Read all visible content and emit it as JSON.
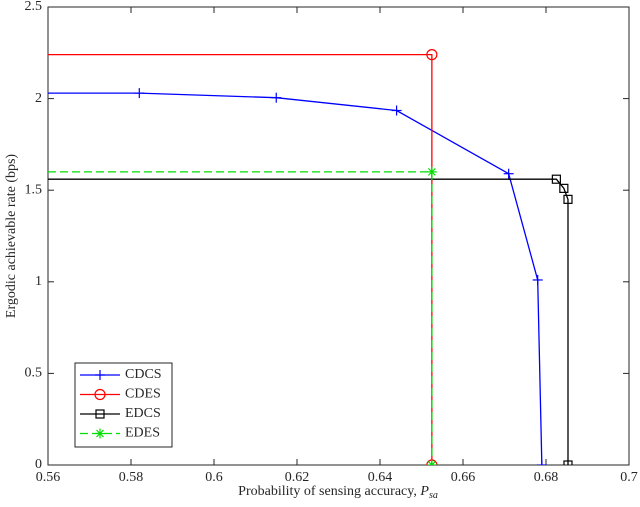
{
  "chart_data": {
    "type": "line",
    "xlabel": {
      "text": "Probability of sensing accuracy,",
      "symbol": "P",
      "subscript": "sa"
    },
    "ylabel": "Ergodic achievable rate (bps)",
    "xlim": [
      0.56,
      0.7
    ],
    "xticks": [
      0.56,
      0.58,
      0.6,
      0.62,
      0.64,
      0.66,
      0.68,
      0.7
    ],
    "ylim": [
      0,
      2.5
    ],
    "yticks": [
      0,
      0.5,
      1,
      1.5,
      2,
      2.5
    ],
    "grid": false,
    "legend": "lower left",
    "series": [
      {
        "name": "CDCS",
        "color": "#0000ff",
        "marker": "+",
        "dash": false,
        "x": [
          0.582,
          0.615,
          0.644,
          0.671,
          0.678,
          0.679
        ],
        "values": [
          2.03,
          2.005,
          1.935,
          1.59,
          1.01,
          0
        ]
      },
      {
        "name": "CDES",
        "color": "#ff0000",
        "marker": "o",
        "dash": false,
        "x": [
          0.6525,
          0.6525
        ],
        "values": [
          2.24,
          0
        ]
      },
      {
        "name": "EDCS",
        "color": "#000000",
        "marker": "s",
        "dash": false,
        "x": [
          0.6825,
          0.6843,
          0.6853,
          0.6853
        ],
        "values": [
          1.56,
          1.51,
          1.45,
          0
        ]
      },
      {
        "name": "EDES",
        "color": "#00dd00",
        "marker": "*",
        "dash": true,
        "x": [
          0.6525,
          0.6525
        ],
        "values": [
          1.6,
          0
        ]
      }
    ]
  }
}
